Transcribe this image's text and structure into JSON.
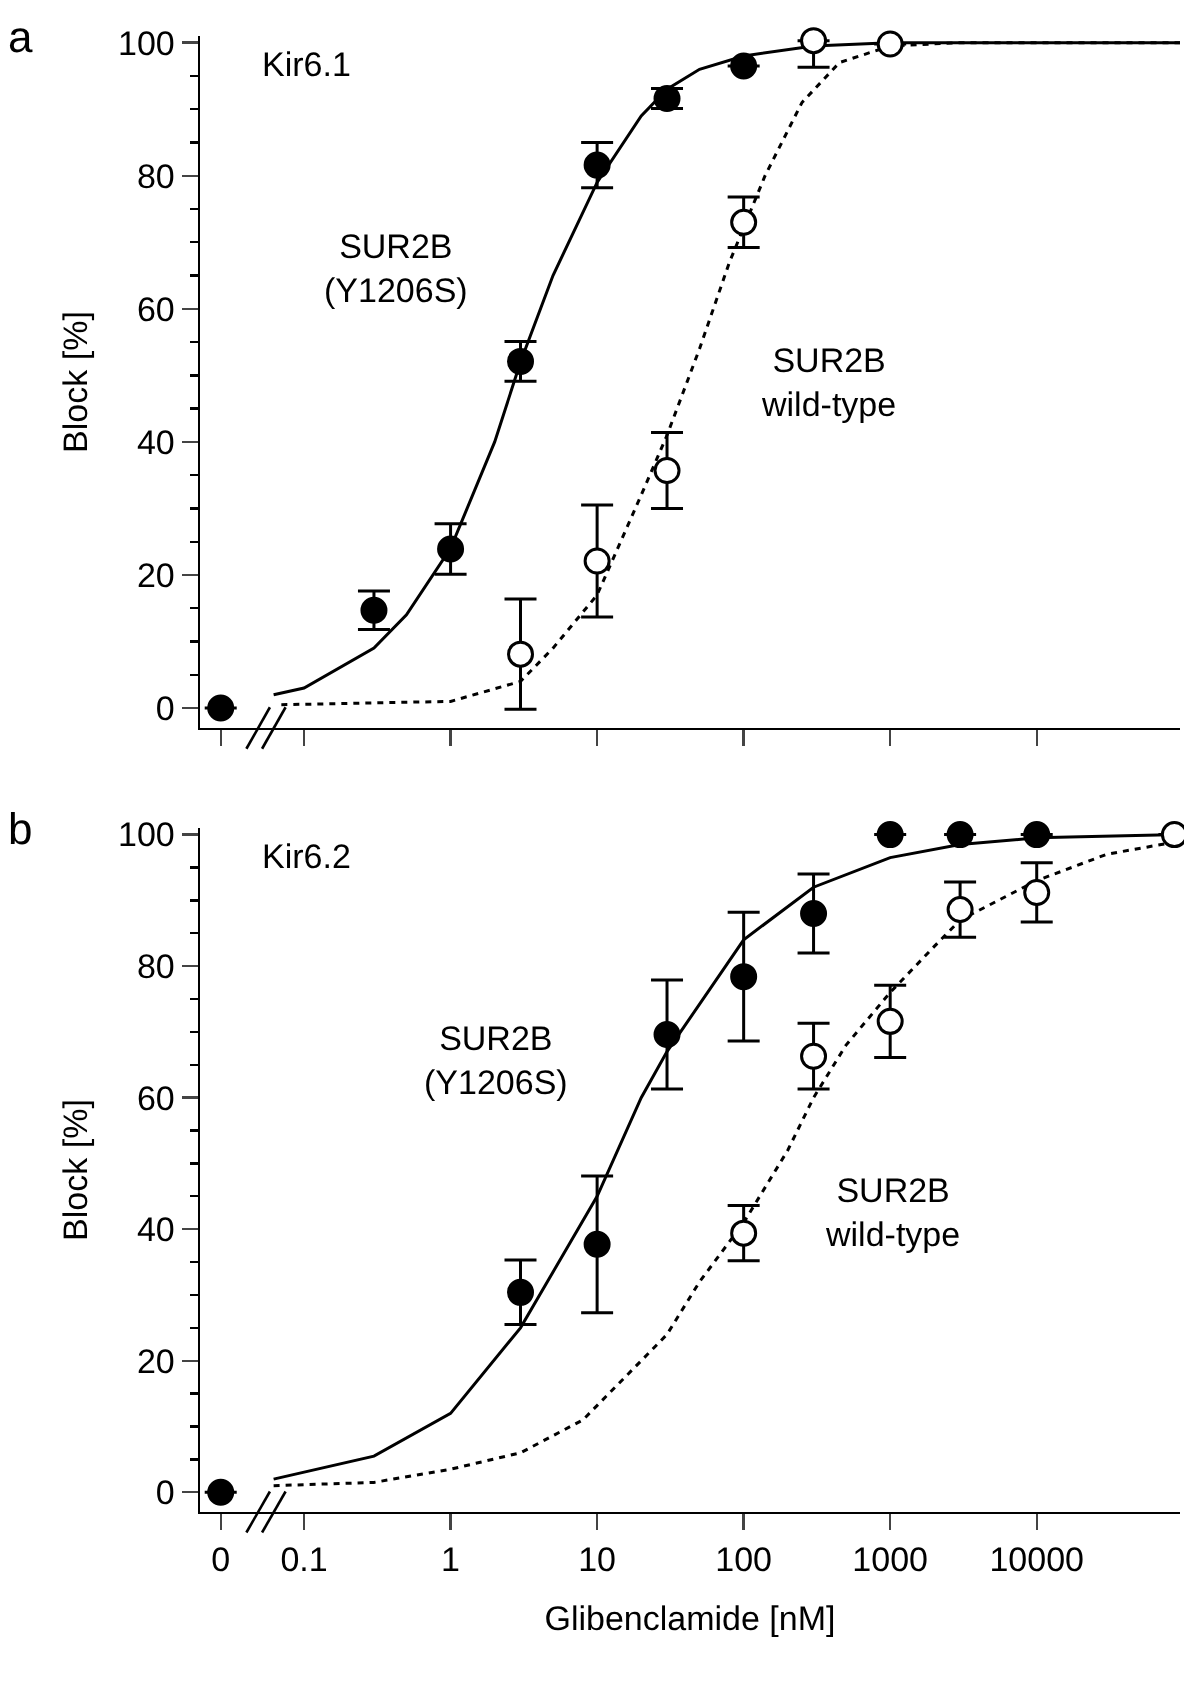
{
  "chart_data": [
    {
      "type": "scatter",
      "title": "Kir6.1",
      "ylabel": "Block [%]",
      "xlim": [
        0.0195,
        95000
      ],
      "ylim": [
        -3,
        101
      ],
      "log": "x",
      "tick_labels": "y",
      "grid": false,
      "xticks": [
        {
          "value": 0.027,
          "label": null
        },
        0.1,
        1,
        10,
        100,
        1000,
        10000
      ],
      "yticks": [
        0,
        20,
        40,
        60,
        80,
        100
      ],
      "series": [
        {
          "type": "line",
          "color": "#000000",
          "line_style": "solid",
          "marker": "none",
          "x": [
            0.062,
            0.1,
            0.3,
            0.5,
            1,
            2,
            3,
            5,
            10,
            20,
            30,
            50,
            100,
            300,
            1000,
            95000
          ],
          "values": [
            2,
            3,
            9,
            14,
            24,
            40,
            52,
            65,
            79,
            89,
            93,
            96,
            98,
            99.5,
            100,
            100
          ]
        },
        {
          "type": "line",
          "color": "#000000",
          "line_style": "dotted",
          "marker": "none",
          "x": [
            0.07,
            1,
            3,
            5,
            10,
            20,
            30,
            50,
            80,
            140,
            250,
            450,
            1000,
            3000,
            95000
          ],
          "values": [
            0.5,
            1,
            4,
            9,
            17,
            32,
            41,
            54,
            67,
            80,
            91,
            97,
            99.5,
            100,
            100
          ]
        },
        {
          "type": "scatter",
          "color": "#000000",
          "marker": "circle",
          "x": [
            0.027,
            0.3,
            1,
            3,
            10,
            30,
            100
          ],
          "values": [
            0,
            14.7,
            23.9,
            52.1,
            81.6,
            91.6,
            96.5
          ],
          "errors": [
            null,
            2.9,
            3.8,
            3,
            3.4,
            1.5,
            null
          ]
        },
        {
          "type": "scatter",
          "color": "#ffffff",
          "marker": "circle",
          "x": [
            3,
            10,
            30,
            100,
            300,
            1000
          ],
          "values": [
            8.1,
            22.1,
            35.7,
            73,
            100.3,
            99.8
          ],
          "errors": [
            8.3,
            8.4,
            5.7,
            3.8,
            [
              96.3,
              100.3
            ],
            null
          ]
        }
      ],
      "annotations": [
        "a",
        "SUR2B\n(Y1206S)",
        "SUR2B\nwild-type"
      ]
    },
    {
      "type": "scatter",
      "title": "Kir6.2",
      "xlabel": "Glibenclamide [nM]",
      "ylabel": "Block [%]",
      "xlim": [
        0.0195,
        95000
      ],
      "ylim": [
        -3,
        101
      ],
      "log": "x",
      "grid": false,
      "xticks": [
        {
          "value": 0.027,
          "label": "0"
        },
        0.1,
        1,
        10,
        100,
        1000,
        10000
      ],
      "yticks": [
        0,
        20,
        40,
        60,
        80,
        100
      ],
      "series": [
        {
          "type": "line",
          "color": "#000000",
          "line_style": "solid",
          "marker": "none",
          "x": [
            0.062,
            0.3,
            1,
            3,
            10,
            20,
            30,
            100,
            300,
            1000,
            3000,
            10000,
            95000
          ],
          "values": [
            2,
            5.5,
            12,
            25,
            45,
            60,
            67,
            84,
            92,
            96.5,
            98.5,
            99.5,
            100
          ]
        },
        {
          "type": "line",
          "color": "#000000",
          "line_style": "dotted",
          "marker": "none",
          "x": [
            0.062,
            0.3,
            1,
            3,
            8,
            20,
            30,
            50,
            100,
            200,
            300,
            500,
            1000,
            2000,
            3000,
            10000,
            30000,
            95000
          ],
          "values": [
            1,
            1.5,
            3.5,
            6,
            11,
            20,
            24,
            32,
            41,
            52,
            60,
            68,
            76,
            83,
            87,
            93,
            97,
            99
          ]
        },
        {
          "type": "scatter",
          "color": "#000000",
          "marker": "circle",
          "x": [
            0.027,
            3,
            10,
            30,
            100,
            300,
            1000,
            3000,
            10000
          ],
          "values": [
            0,
            30.4,
            37.7,
            69.6,
            78.4,
            88,
            100,
            100,
            100
          ],
          "errors": [
            null,
            4.9,
            10.4,
            8.3,
            9.8,
            6,
            null,
            null,
            null
          ]
        },
        {
          "type": "scatter",
          "color": "#ffffff",
          "marker": "circle",
          "x": [
            100,
            300,
            1000,
            3000,
            10000,
            87000
          ],
          "values": [
            39.4,
            66.3,
            71.6,
            88.6,
            91.2,
            100
          ],
          "errors": [
            4.2,
            5,
            5.5,
            4.2,
            4.5,
            null
          ]
        }
      ],
      "annotations": [
        "b",
        "SUR2B\n(Y1206S)",
        "SUR2B\nwild-type"
      ]
    }
  ]
}
